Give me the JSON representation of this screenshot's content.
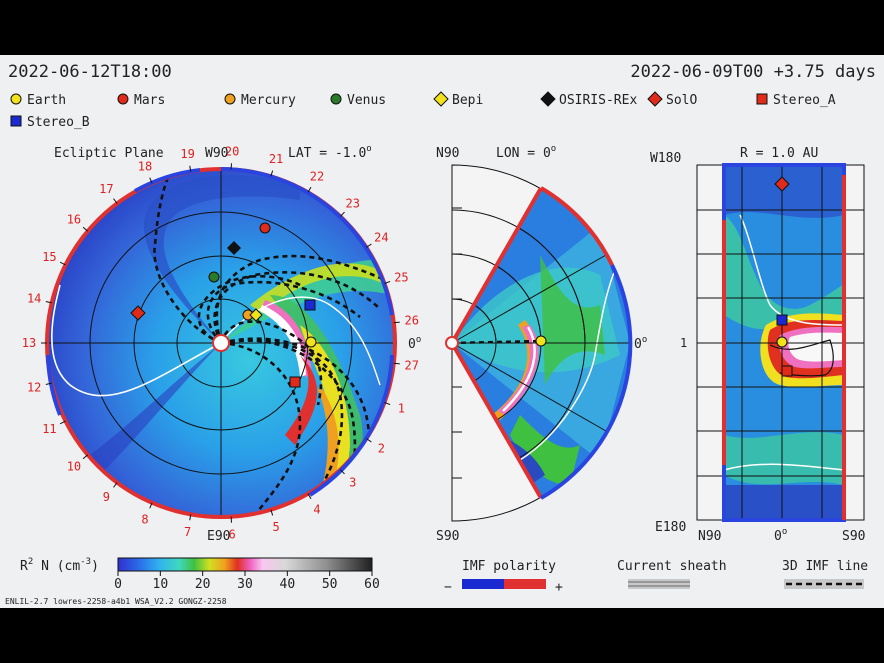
{
  "header": {
    "time": "2022-06-12T18:00",
    "run": "2022-06-09T00 +3.75 days"
  },
  "legend": [
    {
      "label": "Earth",
      "color": "#f2e21a",
      "shape": "circle"
    },
    {
      "label": "Mars",
      "color": "#e02a1a",
      "shape": "circle"
    },
    {
      "label": "Mercury",
      "color": "#f0a020",
      "shape": "circle"
    },
    {
      "label": "Venus",
      "color": "#2a7a2a",
      "shape": "circle"
    },
    {
      "label": "Bepi",
      "color": "#f2e21a",
      "shape": "diamond"
    },
    {
      "label": "OSIRIS-REx",
      "color": "#111111",
      "shape": "diamond"
    },
    {
      "label": "SolO",
      "color": "#e02a1a",
      "shape": "diamond"
    },
    {
      "label": "Stereo_A",
      "color": "#e02a1a",
      "shape": "square"
    },
    {
      "label": "Stereo_B",
      "color": "#1a2ad0",
      "shape": "square"
    }
  ],
  "ecliptic": {
    "title": "Ecliptic Plane",
    "top": "W90",
    "lat": "LAT = -1.0",
    "lat_sup": "o",
    "right": "0",
    "right_sup": "o",
    "bottom": "E90",
    "ticks": [
      "13",
      "14",
      "15",
      "16",
      "17",
      "18",
      "19",
      "20",
      "21",
      "22",
      "23",
      "24",
      "25",
      "26",
      "27",
      "1",
      "2",
      "3",
      "4",
      "5",
      "6",
      "7",
      "8",
      "9",
      "10",
      "11",
      "12"
    ]
  },
  "meridional": {
    "top": "N90",
    "lon": "LON = 0",
    "lon_sup": "o",
    "right": "0",
    "right_sup": "o",
    "bottom": "S90"
  },
  "radial": {
    "title": "R = 1.0 AU",
    "left_top": "W180",
    "left_mid": "1",
    "left_bottom": "E180",
    "b_left": "N90",
    "b_mid": "0",
    "b_mid_sup": "o",
    "b_right": "S90"
  },
  "colorbar": {
    "label": "R",
    "label_sup": "2",
    "label_rest": " N (cm",
    "label_sup2": "-3",
    "label_end": ")",
    "ticks": [
      "0",
      "10",
      "20",
      "30",
      "40",
      "50",
      "60"
    ]
  },
  "imf": {
    "title": "IMF polarity",
    "minus": "−",
    "plus": "+"
  },
  "sheath": {
    "title": "Current sheath"
  },
  "imf3d": {
    "title": "3D IMF line"
  },
  "footer": "ENLIL-2.7 lowres-2258-a4b1 WSA_V2.2 GONGZ-2258"
}
